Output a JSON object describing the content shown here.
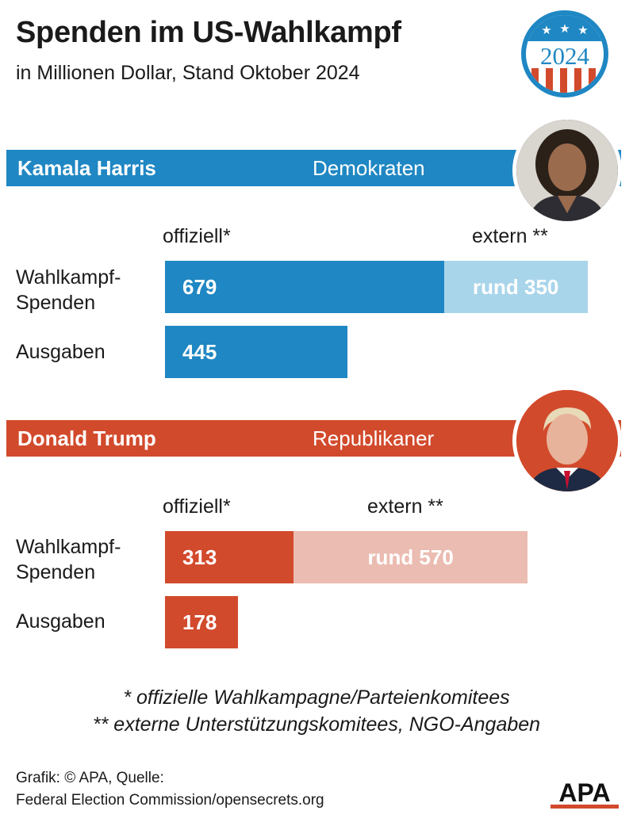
{
  "title": "Spenden im US-Wahlkampf",
  "subtitle": "in Millionen Dollar, Stand Oktober 2024",
  "badge_year": "2024",
  "colors": {
    "dem_dark": "#1f87c3",
    "dem_light": "#a9d5ea",
    "rep_dark": "#d24a2c",
    "rep_light": "#ebbcb1",
    "badge_blue": "#1f87c3",
    "badge_red": "#d24a2c"
  },
  "chart_data": [
    {
      "type": "bar",
      "candidate": "Kamala Harris",
      "party": "Demokraten",
      "column_headers": {
        "official": "offiziell*",
        "external": "extern **"
      },
      "categories": [
        "Wahlkampf-Spenden",
        "Ausgaben"
      ],
      "category_labels": [
        [
          "Wahlkampf-",
          "Spenden"
        ],
        [
          "Ausgaben"
        ]
      ],
      "series": [
        {
          "key": "official",
          "values": [
            679,
            445
          ],
          "value_labels": [
            "679",
            "445"
          ]
        },
        {
          "key": "external",
          "values": [
            350,
            null
          ],
          "value_labels": [
            "rund 350",
            ""
          ]
        }
      ]
    },
    {
      "type": "bar",
      "candidate": "Donald Trump",
      "party": "Republikaner",
      "column_headers": {
        "official": "offiziell*",
        "external": "extern **"
      },
      "categories": [
        "Wahlkampf-Spenden",
        "Ausgaben"
      ],
      "category_labels": [
        [
          "Wahlkampf-",
          "Spenden"
        ],
        [
          "Ausgaben"
        ]
      ],
      "series": [
        {
          "key": "official",
          "values": [
            313,
            178
          ],
          "value_labels": [
            "313",
            "178"
          ]
        },
        {
          "key": "external",
          "values": [
            570,
            null
          ],
          "value_labels": [
            "rund 570",
            ""
          ]
        }
      ]
    }
  ],
  "footnotes": [
    "* offizielle Wahlkampagne/Parteienkomitees",
    "** externe Unterstützungskomitees, NGO-Angaben"
  ],
  "credit": [
    "Grafik: © APA, Quelle:",
    "Federal Election Commission/opensecrets.org"
  ],
  "logo_text": "APA"
}
